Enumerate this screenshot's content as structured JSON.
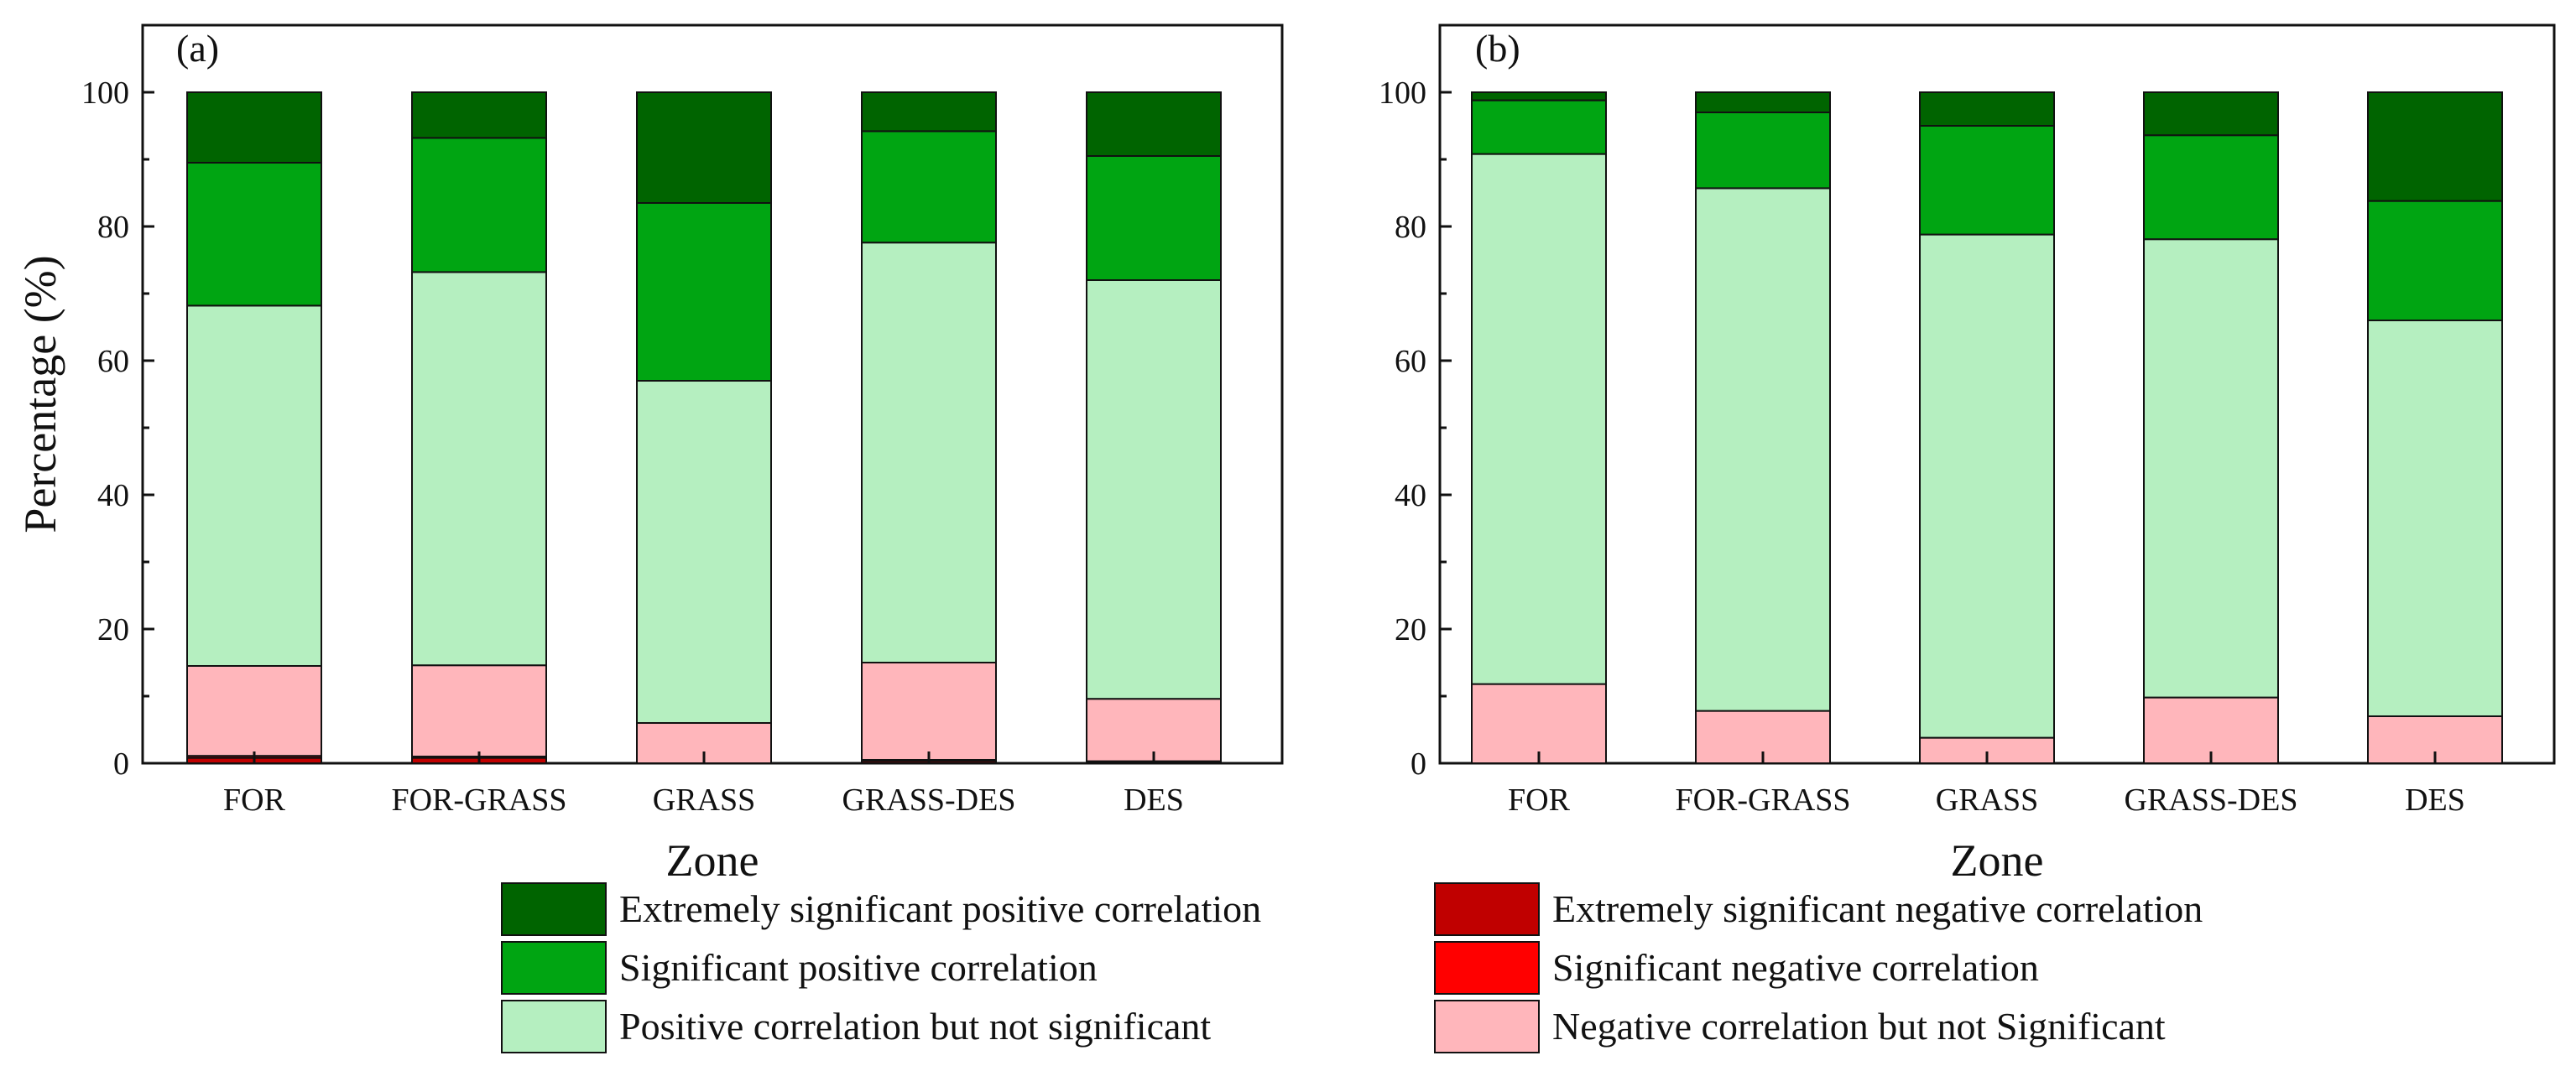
{
  "figure": {
    "type": "stacked-bar-panels"
  },
  "colors": {
    "extremely_sig_pos": "#006400",
    "sig_pos": "#00a512",
    "pos_not_sig": "#b5efc0",
    "extremely_sig_neg": "#c00000",
    "sig_neg": "#ff0000",
    "neg_not_sig": "#ffb6bb",
    "axis": "#111111"
  },
  "chart_data": [
    {
      "type": "bar",
      "stacked": true,
      "panel_label": "(a)",
      "xlabel": "Zone",
      "ylabel": "Percentage (%)",
      "ylim": [
        0,
        110
      ],
      "yticks": [
        0,
        20,
        40,
        60,
        80,
        100
      ],
      "categories": [
        "FOR",
        "FOR-GRASS",
        "GRASS",
        "GRASS-DES",
        "DES"
      ],
      "series": [
        {
          "name": "Extremely significant negative correlation",
          "key": "extremely_sig_neg",
          "values": [
            0.8,
            0.8,
            0.0,
            0.3,
            0.2
          ]
        },
        {
          "name": "Significant negative correlation",
          "key": "sig_neg",
          "values": [
            0.3,
            0.2,
            0.0,
            0.2,
            0.1
          ]
        },
        {
          "name": "Negative correlation but not Significant",
          "key": "neg_not_sig",
          "values": [
            13.4,
            13.6,
            6.0,
            14.5,
            9.3
          ]
        },
        {
          "name": "Positive correlation but not significant",
          "key": "pos_not_sig",
          "values": [
            53.7,
            58.6,
            51.0,
            62.6,
            62.4
          ]
        },
        {
          "name": "Significant positive correlation",
          "key": "sig_pos",
          "values": [
            21.3,
            20.0,
            26.5,
            16.6,
            18.5
          ]
        },
        {
          "name": "Extremely significant positive correlation",
          "key": "extremely_sig_pos",
          "values": [
            10.5,
            6.8,
            16.5,
            5.8,
            9.5
          ]
        }
      ]
    },
    {
      "type": "bar",
      "stacked": true,
      "panel_label": "(b)",
      "xlabel": "Zone",
      "ylabel": "",
      "ylim": [
        0,
        110
      ],
      "yticks": [
        0,
        20,
        40,
        60,
        80,
        100
      ],
      "categories": [
        "FOR",
        "FOR-GRASS",
        "GRASS",
        "GRASS-DES",
        "DES"
      ],
      "series": [
        {
          "name": "Extremely significant negative correlation",
          "key": "extremely_sig_neg",
          "values": [
            0,
            0,
            0,
            0,
            0
          ]
        },
        {
          "name": "Significant negative correlation",
          "key": "sig_neg",
          "values": [
            0,
            0,
            0,
            0,
            0
          ]
        },
        {
          "name": "Negative correlation but not Significant",
          "key": "neg_not_sig",
          "values": [
            11.8,
            7.8,
            3.8,
            9.8,
            7.0
          ]
        },
        {
          "name": "Positive correlation but not significant",
          "key": "pos_not_sig",
          "values": [
            79.0,
            77.9,
            75.0,
            68.3,
            59.0
          ]
        },
        {
          "name": "Significant positive correlation",
          "key": "sig_pos",
          "values": [
            8.0,
            11.3,
            16.2,
            15.5,
            17.8
          ]
        },
        {
          "name": "Extremely significant positive correlation",
          "key": "extremely_sig_pos",
          "values": [
            1.2,
            3.0,
            5.0,
            6.4,
            16.2
          ]
        }
      ]
    }
  ],
  "legend": {
    "items": [
      {
        "label": "Extremely significant positive correlation",
        "key": "extremely_sig_pos"
      },
      {
        "label": "Extremely significant negative correlation",
        "key": "extremely_sig_neg"
      },
      {
        "label": "Significant positive correlation",
        "key": "sig_pos"
      },
      {
        "label": "Significant negative correlation",
        "key": "sig_neg"
      },
      {
        "label": "Positive correlation but not significant",
        "key": "pos_not_sig"
      },
      {
        "label": "Negative correlation but not Significant",
        "key": "neg_not_sig"
      }
    ]
  }
}
